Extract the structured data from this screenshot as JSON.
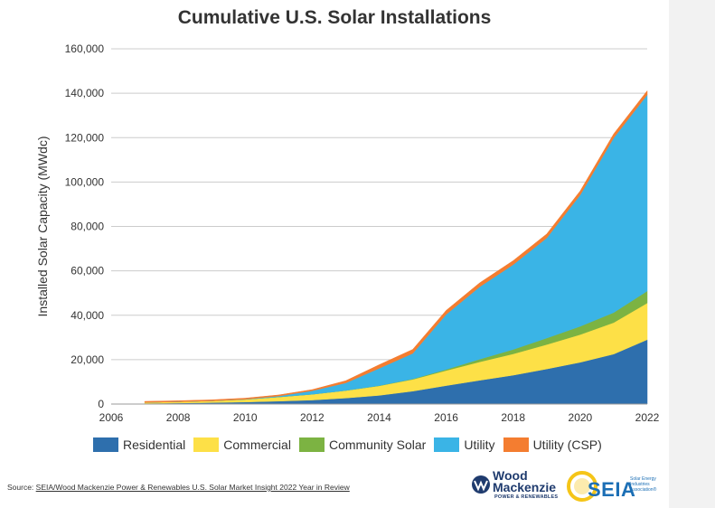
{
  "title": "Cumulative U.S. Solar Installations",
  "chart_data": {
    "type": "area",
    "stacked": true,
    "title": "Cumulative U.S. Solar Installations",
    "xlabel": "",
    "ylabel": "Installed Solar Capacity (MWdc)",
    "xlim": [
      2006,
      2022
    ],
    "ylim": [
      0,
      160000
    ],
    "x_ticks": [
      "2006",
      "2008",
      "2010",
      "2012",
      "2014",
      "2016",
      "2018",
      "2020",
      "2022"
    ],
    "y_ticks": [
      "0",
      "20,000",
      "40,000",
      "60,000",
      "80,000",
      "100,000",
      "120,000",
      "140,000",
      "160,000"
    ],
    "x": [
      2007,
      2008,
      2009,
      2010,
      2011,
      2012,
      2013,
      2014,
      2015,
      2016,
      2017,
      2018,
      2019,
      2020,
      2021,
      2022
    ],
    "series": [
      {
        "name": "Residential",
        "color": "#2e6fad",
        "values": [
          300,
          450,
          650,
          900,
          1300,
          1800,
          2700,
          3900,
          5800,
          8300,
          10700,
          13000,
          15800,
          18800,
          22500,
          29000
        ]
      },
      {
        "name": "Commercial",
        "color": "#fde047",
        "values": [
          450,
          600,
          800,
          1200,
          1900,
          2600,
          3400,
          4300,
          5300,
          6800,
          8300,
          9600,
          11000,
          12500,
          14200,
          16500
        ]
      },
      {
        "name": "Community Solar",
        "color": "#7cb342",
        "values": [
          0,
          0,
          0,
          0,
          0,
          0,
          0,
          100,
          200,
          500,
          1200,
          2000,
          2900,
          3700,
          4500,
          5400
        ]
      },
      {
        "name": "Utility",
        "color": "#3ab4e6",
        "values": [
          0,
          0,
          0,
          100,
          400,
          1600,
          3400,
          7800,
          11500,
          24800,
          32600,
          38200,
          45100,
          59200,
          78700,
          88400
        ]
      },
      {
        "name": "Utility (CSP)",
        "color": "#f47d30",
        "values": [
          450,
          450,
          450,
          450,
          500,
          500,
          1000,
          1600,
          1800,
          1800,
          1800,
          1800,
          1800,
          1800,
          1800,
          1800
        ]
      }
    ]
  },
  "source": {
    "prefix": "Source: ",
    "link_text": "SEIA/Wood Mackenzie Power & Renewables U.S. Solar Market Insight 2022 Year in Review"
  },
  "logos": {
    "woodmac_line1": "Wood",
    "woodmac_line2": "Mackenzie",
    "woodmac_sub": "POWER & RENEWABLES",
    "seia_text": "SEIA",
    "seia_sub": "Solar Energy Industries Association®"
  }
}
